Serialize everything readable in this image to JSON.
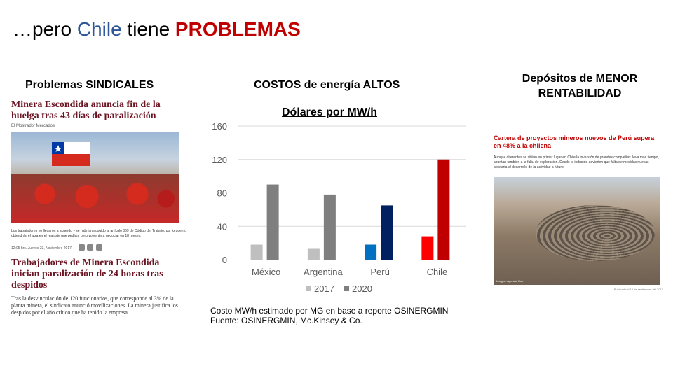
{
  "slide": {
    "title_pre": "…pero ",
    "title_chile": "Chile",
    "title_mid": " tiene ",
    "title_problemas": "PROBLEMAS",
    "heading_sindicales": "Problemas SINDICALES",
    "heading_costos": "COSTOS de energía ALTOS",
    "heading_depositos": "Depósitos de MENOR RENTABILIDAD",
    "footnote_line1": "Costo MW/h estimado por MG en base a reporte OSINERGMIN",
    "footnote_line2": "Fuente: OSINERGMIN,  Mc.Kinsey & Co."
  },
  "news_left": {
    "headline1": "Minera Escondida anuncia fin de la huelga tras 43 días de paralización",
    "source": "El Mostrador Mercados",
    "caption": "Los trabajadores no llegaron a acuerdo y se habrían acogido al artículo 369 de Código del Trabajo, por lo que no obtendrán el alza en el reajuste que pedían, pero volverán a negociar en 18 meses.",
    "meta_date": "12:05 hrs. Jueves 23, Noviembre 2017",
    "headline2": "Trabajadores de Minera Escondida inician paralización de 24 horas tras despidos",
    "body2": "Tras la desvinculación de 120 funcionarios, que corresponde al 3% de la planta minera, el sindicato anunció movilizaciones. La minera justifica los despidos por el año crítico que ha tenido la empresa."
  },
  "news_right": {
    "headline": "Cartera de proyectos mineros nuevos de Perú supera en 48% a la chilena",
    "body": "Aunque diferentes se sitúan en primer lugar en Chile la inversión de grandes compañías lleva más tiempo, apuntan también a la falta de exploración. Desde la industria advierten que falta de medidas nuevas afectaría el desarrollo de la actividad a futuro.",
    "photo_credit": "Imagen: Agencia Uno",
    "date": "Publicado el 15 de septiembre del 2017"
  },
  "chart_data": {
    "type": "bar",
    "title": "Dólares por MW/h",
    "categories": [
      "México",
      "Argentina",
      "Perú",
      "Chile"
    ],
    "series": [
      {
        "name": "2017",
        "values": [
          18,
          13,
          18,
          28
        ]
      },
      {
        "name": "2020",
        "values": [
          90,
          78,
          65,
          120
        ]
      }
    ],
    "bar_colors": {
      "2017": [
        "#BFBFBF",
        "#BFBFBF",
        "#0070C0",
        "#FF0000"
      ],
      "2020": [
        "#7F7F7F",
        "#7F7F7F",
        "#002060",
        "#C00000"
      ]
    },
    "legend_colors": {
      "2017": "#BFBFBF",
      "2020": "#7F7F7F"
    },
    "yticks": [
      0,
      40,
      80,
      120,
      160
    ],
    "ylim": [
      0,
      160
    ],
    "grid": true,
    "legend_position": "bottom",
    "axis_color": "#595959",
    "grid_color": "#D9D9D9"
  }
}
